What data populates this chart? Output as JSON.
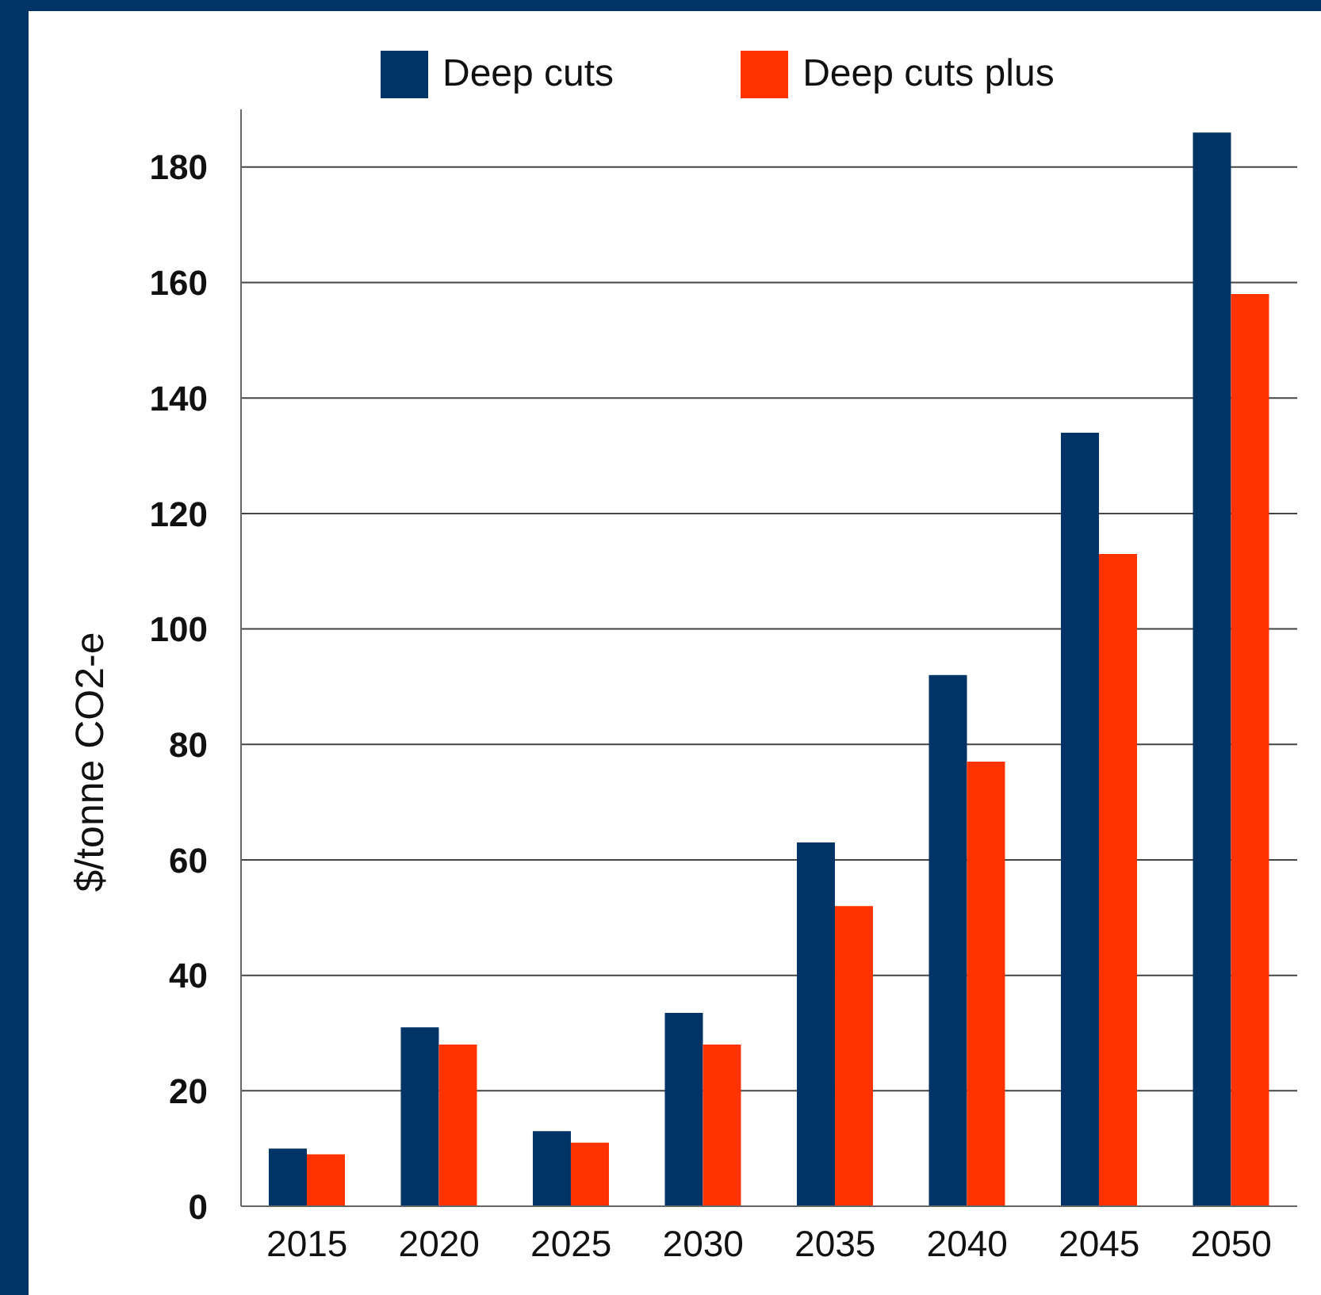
{
  "chart_data": {
    "type": "bar",
    "ylabel": "$/tonne CO2-e",
    "categories": [
      "2015",
      "2020",
      "2025",
      "2030",
      "2035",
      "2040",
      "2045",
      "2050"
    ],
    "series": [
      {
        "name": "Deep cuts",
        "color": "#003366",
        "values": [
          10,
          31,
          13,
          33.5,
          63,
          92,
          134,
          186
        ]
      },
      {
        "name": "Deep cuts plus",
        "color": "#ff3300",
        "values": [
          9,
          28,
          11,
          28,
          52,
          77,
          113,
          158
        ]
      }
    ],
    "ylim": [
      0,
      190
    ],
    "yticks": [
      0,
      20,
      40,
      60,
      80,
      100,
      120,
      140,
      160,
      180
    ],
    "grid": "y",
    "legend": "top"
  }
}
